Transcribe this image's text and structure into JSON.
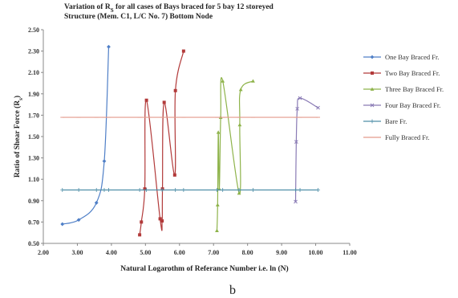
{
  "chart_data": {
    "type": "scatter",
    "title_lines": [
      [
        "Variation of R",
        "S",
        " for all cases of Bays braced for 5 bay  12 storeyed"
      ],
      [
        "Structure (Mem. C1, L/C No. 7) Bottom Node"
      ]
    ],
    "xlabel": "Natural Logarothm of Referance Number i.e. ln (N)",
    "ylabel": [
      "Ratio of  Shear Force (R",
      "s",
      ")"
    ],
    "caption": "b",
    "xlim": [
      2.0,
      11.0
    ],
    "ylim": [
      0.5,
      2.5
    ],
    "x_ticks": [
      "2.00",
      "3.00",
      "4.00",
      "5.00",
      "6.00",
      "7.00",
      "8.00",
      "9.00",
      "10.00",
      "11.00"
    ],
    "y_ticks": [
      "0.50",
      "0.70",
      "0.90",
      "1.10",
      "1.30",
      "1.50",
      "1.70",
      "1.90",
      "2.10",
      "2.30",
      "2.50"
    ],
    "legend_position": "right",
    "series": [
      {
        "name": "One Bay Braced Fr.",
        "color": "#4f7fc7",
        "marker": "diamond",
        "points": [
          [
            2.56,
            0.68
          ],
          [
            3.04,
            0.72
          ],
          [
            3.56,
            0.88
          ],
          [
            3.79,
            1.27
          ],
          [
            3.92,
            2.34
          ]
        ]
      },
      {
        "name": "Two Bay Braced Fr.",
        "color": "#b23a3a",
        "marker": "square",
        "points": [
          [
            4.83,
            0.58
          ],
          [
            4.88,
            0.7
          ],
          [
            4.98,
            1.01
          ],
          [
            5.03,
            1.84
          ],
          [
            5.43,
            0.73
          ],
          [
            5.49,
            0.71
          ],
          [
            5.5,
            1.01
          ],
          [
            5.55,
            1.82
          ],
          [
            5.86,
            1.14
          ],
          [
            5.88,
            1.93
          ],
          [
            6.12,
            2.3
          ]
        ]
      },
      {
        "name": "Three Bay Braced Fr.",
        "color": "#8eb34a",
        "marker": "triangle",
        "points": [
          [
            7.1,
            0.62
          ],
          [
            7.12,
            0.86
          ],
          [
            7.14,
            1.54
          ],
          [
            7.17,
            1.01
          ],
          [
            7.21,
            1.68
          ],
          [
            7.27,
            2.02
          ],
          [
            7.75,
            0.97
          ],
          [
            7.77,
            1.61
          ],
          [
            7.8,
            1.94
          ],
          [
            8.16,
            2.02
          ]
        ]
      },
      {
        "name": "Four Bay Braced Fr.",
        "color": "#8a7bb5",
        "marker": "x",
        "points": [
          [
            9.41,
            0.89
          ],
          [
            9.43,
            1.45
          ],
          [
            9.46,
            1.76
          ],
          [
            9.54,
            1.86
          ],
          [
            10.07,
            1.77
          ]
        ]
      },
      {
        "name": "Bare Fr.",
        "color": "#4f8fa8",
        "marker": "plus",
        "style": "flat",
        "points": [
          [
            2.56,
            1.0
          ],
          [
            3.04,
            1.0
          ],
          [
            3.56,
            1.0
          ],
          [
            3.79,
            1.0
          ],
          [
            3.92,
            1.0
          ],
          [
            4.83,
            1.0
          ],
          [
            5.03,
            1.0
          ],
          [
            5.49,
            1.0
          ],
          [
            5.88,
            1.0
          ],
          [
            6.12,
            1.0
          ],
          [
            7.1,
            1.0
          ],
          [
            7.27,
            1.0
          ],
          [
            7.75,
            1.0
          ],
          [
            8.16,
            1.0
          ],
          [
            9.41,
            1.0
          ],
          [
            9.54,
            1.0
          ],
          [
            10.07,
            1.0
          ]
        ]
      },
      {
        "name": "Fully Braced Fr.",
        "color": "#e39a8c",
        "marker": "dash",
        "style": "flat",
        "points": [
          [
            2.56,
            1.68
          ],
          [
            3.04,
            1.68
          ],
          [
            3.56,
            1.68
          ],
          [
            3.79,
            1.68
          ],
          [
            3.92,
            1.68
          ],
          [
            4.83,
            1.68
          ],
          [
            5.03,
            1.68
          ],
          [
            5.49,
            1.68
          ],
          [
            5.88,
            1.68
          ],
          [
            6.12,
            1.68
          ],
          [
            7.1,
            1.68
          ],
          [
            7.27,
            1.68
          ],
          [
            7.75,
            1.68
          ],
          [
            8.16,
            1.68
          ],
          [
            9.41,
            1.68
          ],
          [
            9.54,
            1.68
          ],
          [
            10.07,
            1.68
          ]
        ]
      }
    ]
  }
}
